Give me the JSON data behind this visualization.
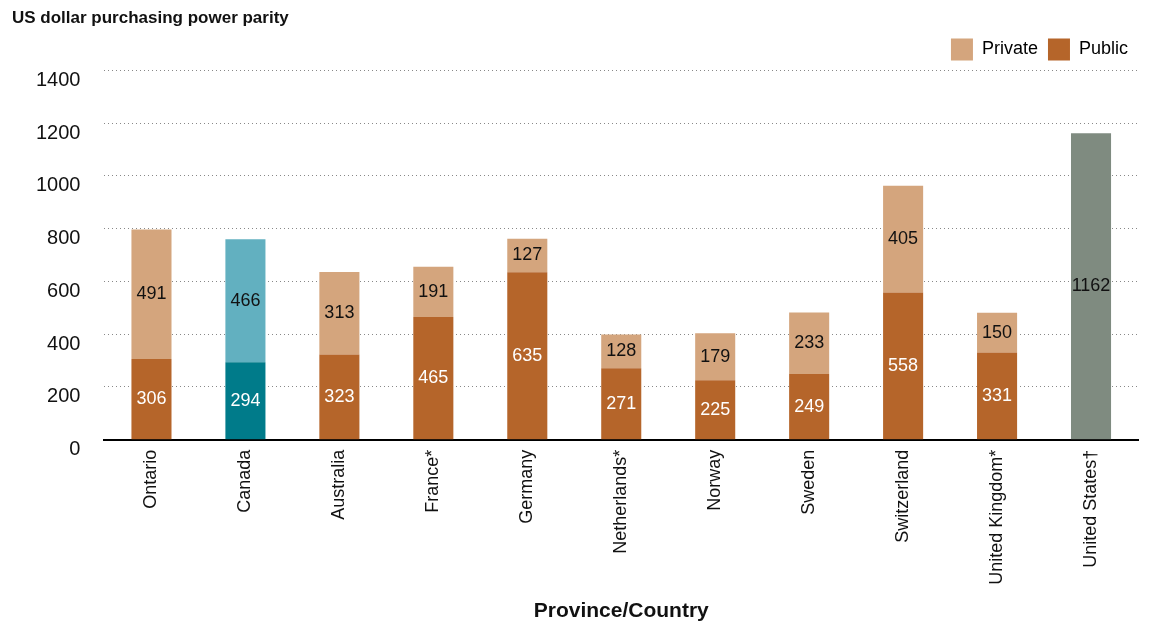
{
  "chart_data": {
    "type": "bar",
    "title": "US dollar purchasing power parity",
    "xlabel": "Province/Country",
    "categories": [
      "Ontario",
      "Canada",
      "Australia",
      "France*",
      "Germany",
      "Netherlands*",
      "Norway",
      "Sweden",
      "Switzerland",
      "United Kingdom*",
      "United States†"
    ],
    "stacked": true,
    "data_labels": true,
    "grid": "y",
    "legend": "top right",
    "ylim": [
      0,
      1400
    ],
    "yticks": [
      0,
      200,
      400,
      600,
      800,
      1000,
      1200,
      1400
    ],
    "series": [
      {
        "name": "Public",
        "color": "#b5652a",
        "colors": [
          "#b5652a",
          "#007b8a",
          "#b5652a",
          "#b5652a",
          "#b5652a",
          "#b5652a",
          "#b5652a",
          "#b5652a",
          "#b5652a",
          "#b5652a",
          "#7f8b80"
        ],
        "values": [
          306,
          294,
          323,
          465,
          635,
          271,
          225,
          249,
          558,
          331,
          1162
        ]
      },
      {
        "name": "Private",
        "color": "#d4a57d",
        "colors": [
          "#d4a57d",
          "#62b0c0",
          "#d4a57d",
          "#d4a57d",
          "#d4a57d",
          "#d4a57d",
          "#d4a57d",
          "#d4a57d",
          "#d4a57d",
          "#d4a57d",
          "#7f8b80"
        ],
        "values": [
          491,
          466,
          313,
          191,
          127,
          128,
          179,
          233,
          405,
          150,
          null
        ]
      }
    ]
  }
}
